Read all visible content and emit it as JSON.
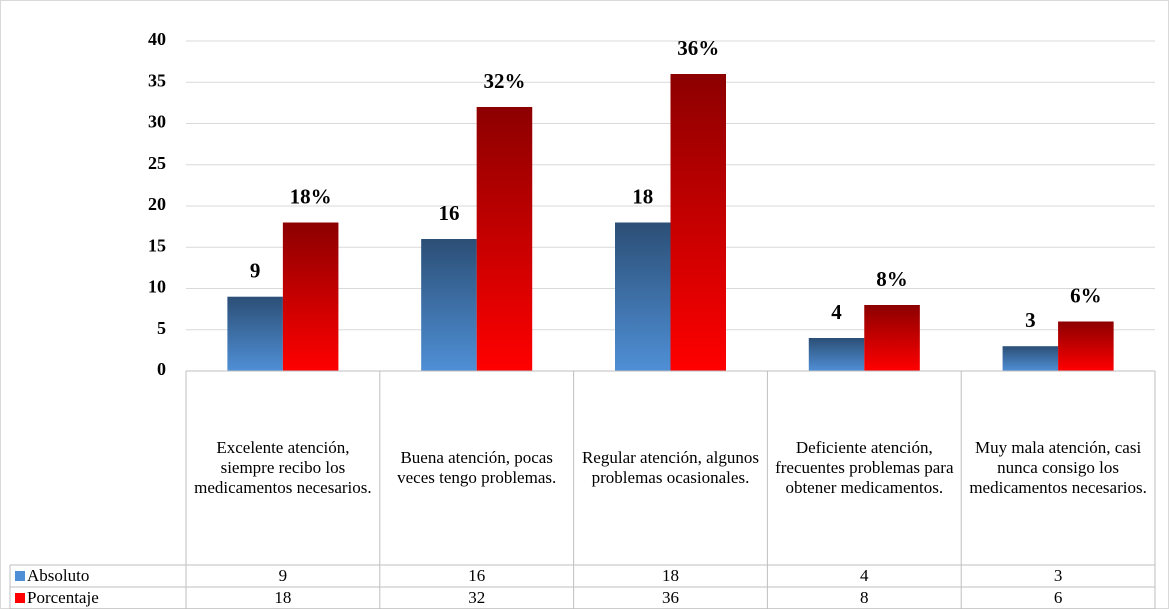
{
  "chart_data": {
    "type": "bar",
    "categories": [
      "Excelente atención, siempre recibo los medicamentos necesarios.",
      "Buena atención, pocas veces tengo problemas.",
      "Regular atención, algunos problemas ocasionales.",
      "Deficiente atención, frecuentes problemas para obtener medicamentos.",
      "Muy mala atención, casi nunca consigo los medicamentos necesarios."
    ],
    "series": [
      {
        "name": "Absoluto",
        "color": "#4f8fd6",
        "values": [
          9,
          16,
          18,
          4,
          3
        ]
      },
      {
        "name": "Porcentaje",
        "color": "#ff0000",
        "values": [
          18,
          32,
          36,
          8,
          6
        ],
        "value_labels": [
          "18%",
          "32%",
          "36%",
          "8%",
          "6%"
        ]
      }
    ],
    "ylim": [
      0,
      40
    ],
    "yticks": [
      0,
      5,
      10,
      15,
      20,
      25,
      30,
      35,
      40
    ],
    "grid": true,
    "data_table": true
  }
}
